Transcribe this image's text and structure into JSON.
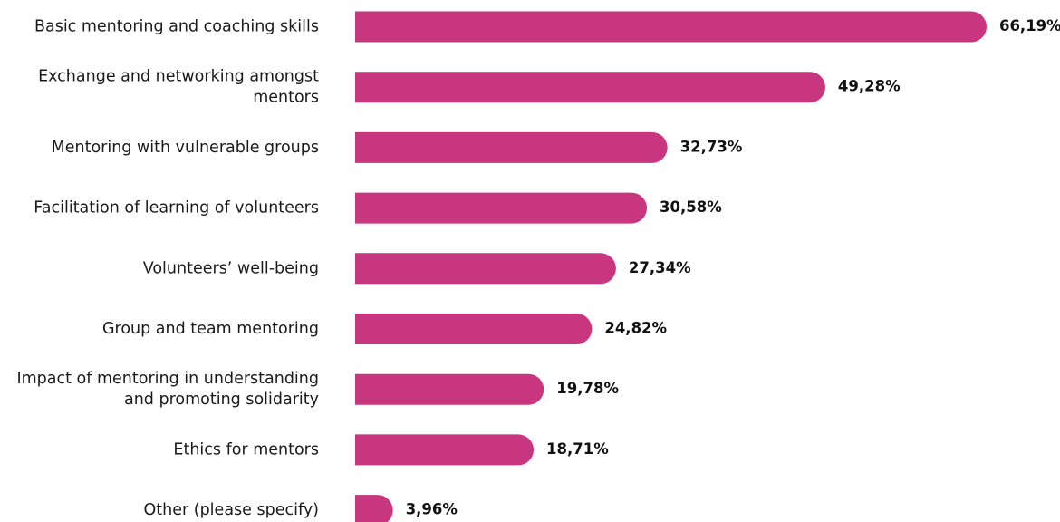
{
  "chart_data": {
    "type": "bar",
    "orientation": "horizontal",
    "categories": [
      [
        "Basic mentoring and coaching skills"
      ],
      [
        "Exchange and networking amongst",
        "mentors"
      ],
      [
        "Mentoring with vulnerable groups"
      ],
      [
        "Facilitation of learning of volunteers"
      ],
      [
        "Volunteers’ well-being"
      ],
      [
        "Group and team mentoring"
      ],
      [
        "Impact of mentoring in understanding",
        "and promoting solidarity"
      ],
      [
        "Ethics for mentors"
      ],
      [
        "Other (please specify)"
      ]
    ],
    "values": [
      66.19,
      49.28,
      32.73,
      30.58,
      27.34,
      24.82,
      19.78,
      18.71,
      3.96
    ],
    "value_labels": [
      "66,19%",
      "49,28%",
      "32,73%",
      "30,58%",
      "27,34%",
      "24,82%",
      "19,78%",
      "18,71%",
      "3,96%"
    ],
    "bar_color": "#c8367f",
    "grid": false,
    "legend": "none"
  }
}
